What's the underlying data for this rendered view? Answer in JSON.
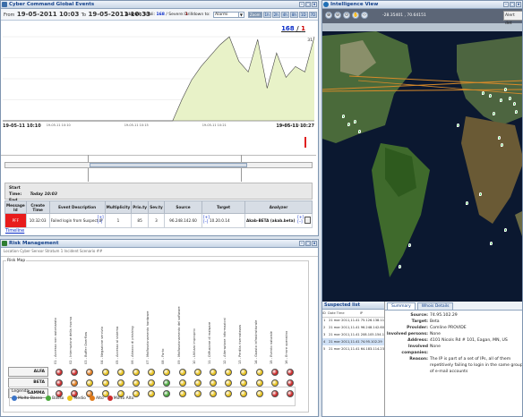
{
  "cce": {
    "title": "Cyber Command Global Events",
    "from_label": "From",
    "from": "19-05-2011 10:03",
    "to_label": "To",
    "to": "19-05-2011 10:33",
    "alarms_label": "Alarmi:",
    "total_label": "Totali:",
    "total": "168",
    "severe_label": "Severe:",
    "severe": "1",
    "drill_label": "Drilldown to:",
    "drill_value": "Alarmi",
    "zoom_buttons": [
      "Zoom",
      "1h",
      "2h",
      "4h",
      "8h",
      "1D",
      "7D"
    ],
    "counter_total": "168",
    "counter_sep": " / ",
    "counter_severe": "1",
    "y_top": "31",
    "start_label": "19-05-11 10:10",
    "end_label": "19-05-11 10:27",
    "start_time_label": "Start Time:",
    "start_time": "Today 10:03",
    "end_time_label": "End Time:",
    "end_time": "Today 10:33",
    "table_headers": [
      "Message Id",
      "Create Time",
      "Event Description",
      "Multiplicity",
      "Prio.ty",
      "Sev.ty",
      "Source",
      "Target",
      "Analyzer"
    ],
    "row": {
      "id": "PFF",
      "time": "10:32:03",
      "desc": "Failed login from Suspect IP",
      "mult": "1",
      "prio": "85",
      "sev": "3",
      "source": "96.248.142.60",
      "target": "10.20.0.14",
      "analyzer": "Akab-BETA (akab.beta)"
    },
    "timeline": "Timeline"
  },
  "chart_data": {
    "type": "area",
    "series": [
      {
        "values": [
          0,
          0,
          0,
          0,
          0,
          0,
          0,
          0,
          0,
          0,
          0,
          0,
          0,
          0,
          0,
          0,
          0,
          0,
          0,
          8,
          15,
          20,
          24,
          28,
          31,
          22,
          18,
          30,
          12,
          25,
          16,
          20,
          18,
          31
        ]
      }
    ],
    "ylim": [
      0,
      31
    ],
    "x_ticks": [
      "19-05-11 10:10",
      "19-05-11 10:15",
      "19-05-11 10:21",
      "19-05-11 10:27"
    ],
    "colors": {
      "fill": "#e8f2c8",
      "line": "#444444"
    }
  },
  "rm": {
    "title": "Risk Management",
    "subhead": "Location     Cyber Sensor Stratum 1          Incident  Scenario ##",
    "map_label": "Risk Map",
    "columns": [
      "01 - Accesso non autorizzato",
      "02 - Interruzione della risorsa",
      "03 - Buffer Overflow",
      "04 - Negazione servizio",
      "05 - Accesso al sistema",
      "06 - Attacco di phishing",
      "07 - Malfunzionamento hardware",
      "08 - Furto",
      "09 - Malfunzionamento del software",
      "10 - Utilizzo improprio",
      "11 - Diffusione di malware",
      "12 - Alterazione informazioni",
      "13 - Perdita riservatezza",
      "14 - Guasto infrastrutturale",
      "15 - Evento naturale",
      "16 - Errore operativo"
    ],
    "rows": [
      {
        "name": "ALFA",
        "levels": [
          4,
          4,
          3,
          2,
          2,
          2,
          2,
          2,
          2,
          2,
          2,
          2,
          2,
          2,
          4,
          4
        ]
      },
      {
        "name": "BETA",
        "levels": [
          4,
          3,
          2,
          2,
          2,
          2,
          2,
          1,
          2,
          2,
          2,
          2,
          2,
          2,
          2,
          4
        ]
      },
      {
        "name": "GAMMA",
        "levels": [
          4,
          4,
          3,
          2,
          2,
          2,
          2,
          1,
          2,
          2,
          2,
          2,
          2,
          2,
          4,
          4
        ]
      }
    ],
    "legend_title": "Legenda",
    "legend": [
      {
        "label": "Molto Basso",
        "color": "#3a74c8"
      },
      {
        "label": "Basso",
        "color": "#49a83a"
      },
      {
        "label": "Medio",
        "color": "#e8c21c"
      },
      {
        "label": "Alto",
        "color": "#e07a1a"
      },
      {
        "label": "Molto Alto",
        "color": "#cc2a2a"
      }
    ]
  },
  "iv": {
    "title": "Intelligence View",
    "coord": "-28.35401 , 70.64151",
    "alert_btn": "Alert det"
  },
  "suspected": {
    "title": "Suspected list",
    "headers": [
      "ID",
      "Date Time",
      "IP"
    ],
    "rows": [
      {
        "id": "1",
        "dt": "21 mar 2011,11.41",
        "ip": "75.126.138.11"
      },
      {
        "id": "2",
        "dt": "21 mar 2011,11.41",
        "ip": "96.248.142.60"
      },
      {
        "id": "3",
        "dt": "21 mar 2011,11.41",
        "ip": "208.105.154.1"
      },
      {
        "id": "4",
        "dt": "21 mar 2011,11.41",
        "ip": "74.95.102.29"
      },
      {
        "id": "5",
        "dt": "21 mar 2011,11.41",
        "ip": "64.183.114.23"
      }
    ]
  },
  "detail": {
    "tabs": [
      "Summary",
      "Whois Details"
    ],
    "fields": [
      {
        "k": "Source:",
        "v": "74.95.102.29"
      },
      {
        "k": "Target:",
        "v": "Beta"
      },
      {
        "k": "Provider:",
        "v": "Comline PROVIDE"
      },
      {
        "k": "Involved persons:",
        "v": "None"
      },
      {
        "k": "Address:",
        "v": "4101 Nicols Rd # 101, Eagan, MN, US"
      },
      {
        "k": "Involved companies:",
        "v": "None"
      },
      {
        "k": "Reason:",
        "v": "The IP is part of a set of IPs, all of them repetitively failing to login in the same group of e-mail accounts"
      }
    ]
  }
}
